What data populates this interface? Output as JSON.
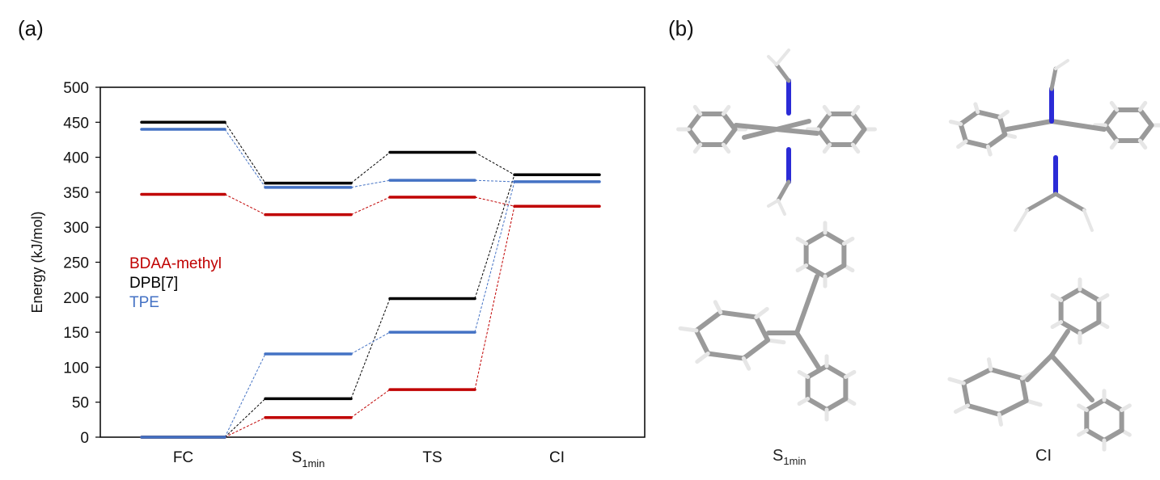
{
  "panels": {
    "a": "(a)",
    "b": "(b)"
  },
  "chart_data": {
    "type": "energy-level diagram",
    "ylabel": "Energy (kJ/mol)",
    "ylim": [
      0,
      500
    ],
    "yticks": [
      0,
      50,
      100,
      150,
      200,
      250,
      300,
      350,
      400,
      450,
      500
    ],
    "categories": [
      {
        "main": "FC",
        "sub": ""
      },
      {
        "main": "S",
        "sub": "1min"
      },
      {
        "main": "TS",
        "sub": ""
      },
      {
        "main": "CI",
        "sub": ""
      }
    ],
    "legend_placement": "center-left",
    "series": [
      {
        "name": "BDAA-methyl",
        "color": "#C00000",
        "upper": [
          347,
          318,
          343,
          330
        ],
        "lower": [
          0,
          28,
          68,
          330
        ]
      },
      {
        "name": "DPB[7]",
        "color": "#000000",
        "upper": [
          450,
          363,
          407,
          375
        ],
        "lower": [
          0,
          55,
          198,
          375
        ]
      },
      {
        "name": "TPE",
        "color": "#4472C4",
        "upper": [
          440,
          357,
          367,
          365
        ],
        "lower": [
          0,
          119,
          150,
          365
        ]
      }
    ]
  },
  "structures": {
    "labels": [
      {
        "main": "S",
        "sub": "1min"
      },
      {
        "main": "CI",
        "sub": ""
      }
    ],
    "atom_colors": {
      "carbon": "#9a9a9a",
      "nitrogen": "#2b2bd6",
      "hydrogen": "#e6e6e6"
    }
  }
}
